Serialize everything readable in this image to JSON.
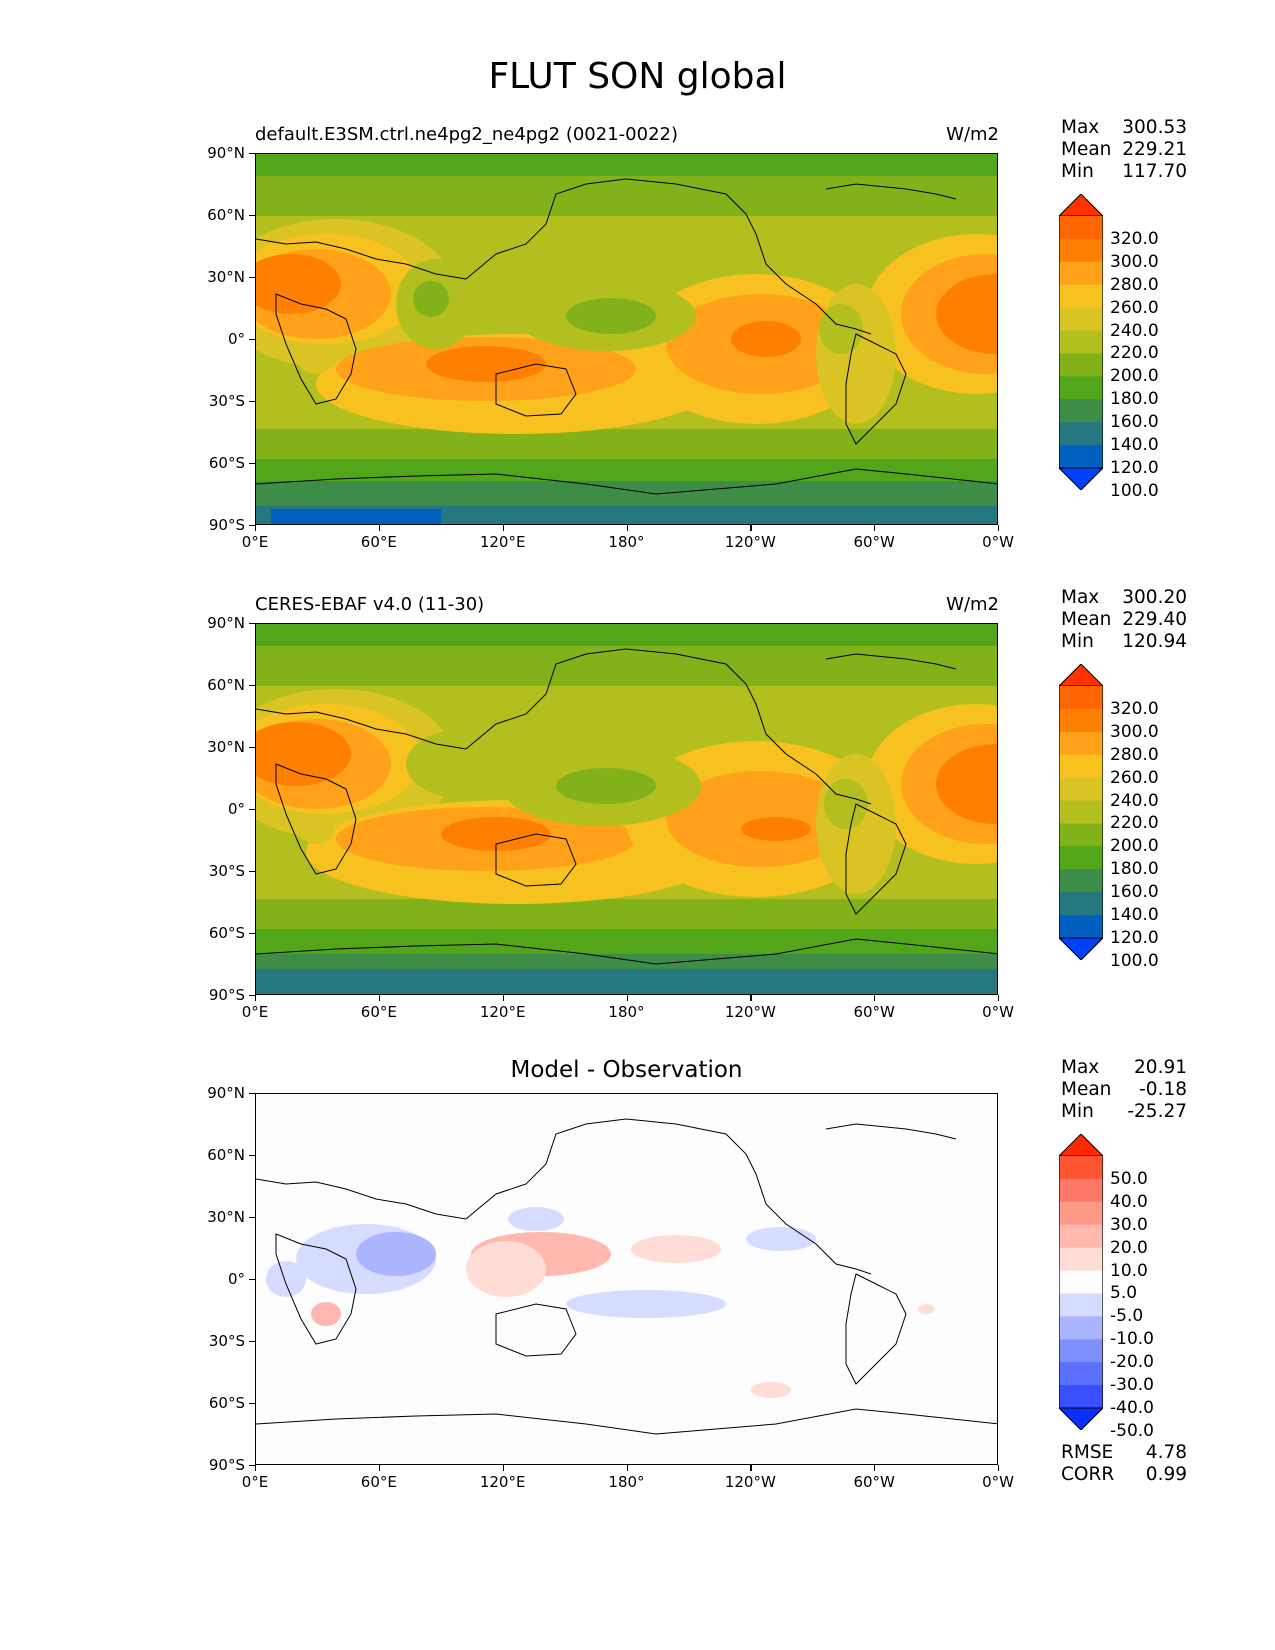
{
  "title": "FLUT SON global",
  "x_tick_labels": [
    "0°E",
    "60°E",
    "120°E",
    "180°",
    "120°W",
    "60°W",
    "0°W"
  ],
  "y_tick_labels": [
    "90°N",
    "60°N",
    "30°N",
    "0°",
    "30°S",
    "60°S",
    "90°S"
  ],
  "panels": [
    {
      "id": "model",
      "title_left": "default.E3SM.ctrl.ne4pg2_ne4pg2 (0021-0022)",
      "units": "W/m2",
      "stats": {
        "max_label": "Max",
        "max": "300.53",
        "mean_label": "Mean",
        "mean": "229.21",
        "min_label": "Min",
        "min": "117.70"
      },
      "colorbar_levels": [
        "320.0",
        "300.0",
        "280.0",
        "260.0",
        "240.0",
        "220.0",
        "200.0",
        "180.0",
        "160.0",
        "140.0",
        "120.0",
        "100.0"
      ]
    },
    {
      "id": "obs",
      "title_left": "CERES-EBAF v4.0 (11-30)",
      "units": "W/m2",
      "stats": {
        "max_label": "Max",
        "max": "300.20",
        "mean_label": "Mean",
        "mean": "229.40",
        "min_label": "Min",
        "min": "120.94"
      },
      "colorbar_levels": [
        "320.0",
        "300.0",
        "280.0",
        "260.0",
        "240.0",
        "220.0",
        "200.0",
        "180.0",
        "160.0",
        "140.0",
        "120.0",
        "100.0"
      ]
    },
    {
      "id": "diff",
      "title_center": "Model - Observation",
      "stats": {
        "max_label": "Max",
        "max": "20.91",
        "mean_label": "Mean",
        "mean": "-0.18",
        "min_label": "Min",
        "min": "-25.27"
      },
      "colorbar_levels": [
        "50.0",
        "40.0",
        "30.0",
        "20.0",
        "10.0",
        "5.0",
        "-5.0",
        "-10.0",
        "-20.0",
        "-30.0",
        "-40.0",
        "-50.0"
      ],
      "metrics": {
        "rmse_label": "RMSE",
        "rmse": "4.78",
        "corr_label": "CORR",
        "corr": "0.99"
      }
    }
  ],
  "colors": {
    "abs_colormap": [
      "#ff3300",
      "#ff6600",
      "#ff8000",
      "#ffa21a",
      "#f7c21f",
      "#d9c424",
      "#b3bf1e",
      "#82b21a",
      "#52a61a",
      "#3d8c48",
      "#267880",
      "#0060bf",
      "#0040ff"
    ],
    "diff_colormap": [
      "#ff2a00",
      "#ff5533",
      "#ff7766",
      "#ff9988",
      "#ffb8ad",
      "#ffdcd6",
      "#fdfdfd",
      "#d6dcff",
      "#aab4ff",
      "#8090ff",
      "#5b70ff",
      "#3a50ff",
      "#0a30ff"
    ]
  }
}
